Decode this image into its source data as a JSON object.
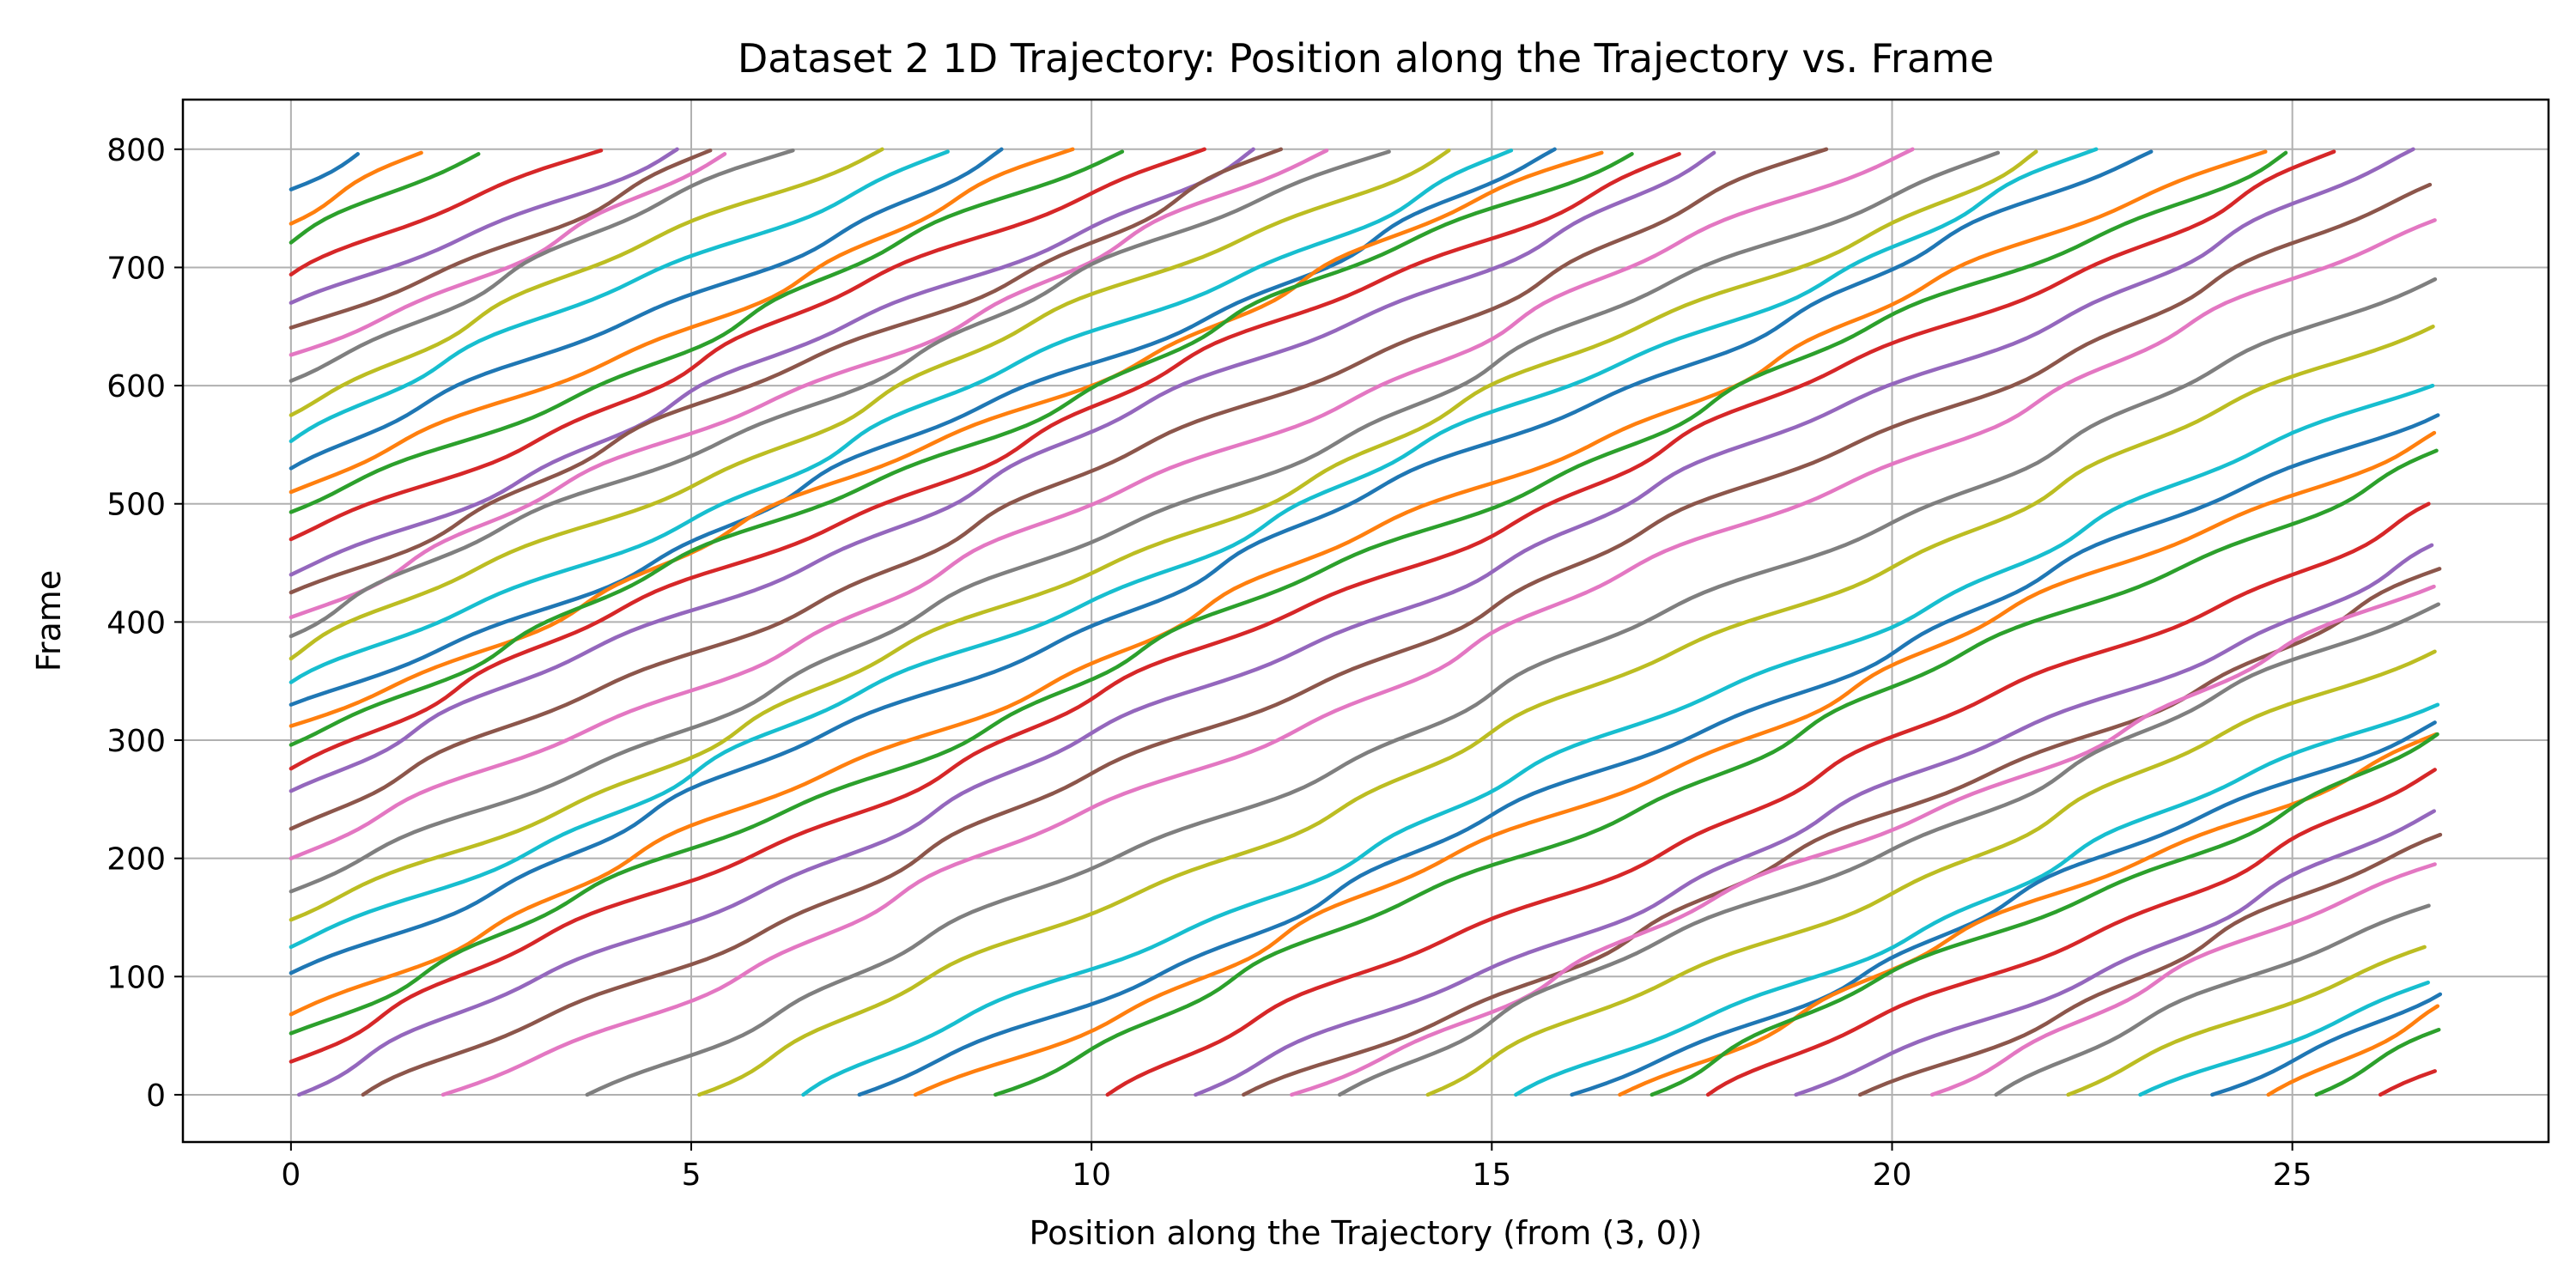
{
  "chart_data": {
    "type": "line",
    "title": "Dataset 2 1D Trajectory: Position along the Trajectory vs. Frame",
    "xlabel": "Position along the Trajectory (from (3, 0))",
    "ylabel": "Frame",
    "xlim": [
      -1.35,
      28.2
    ],
    "ylim": [
      -40,
      842
    ],
    "x_ticks": [
      0,
      5,
      10,
      15,
      20,
      25
    ],
    "y_ticks": [
      0,
      100,
      200,
      300,
      400,
      500,
      600,
      700,
      800
    ],
    "grid": true,
    "legend": "none",
    "frame_range": [
      0,
      800
    ],
    "track_length": 26.85,
    "speed_units_per_frame": 0.0335,
    "palette": [
      "#1f77b4",
      "#ff7f0e",
      "#2ca02c",
      "#d62728",
      "#9467bd",
      "#8c564b",
      "#e377c2",
      "#7f7f7f",
      "#bcbd22",
      "#17becf"
    ],
    "entries_at_left_edge_frame": [
      28,
      52,
      68,
      103,
      125,
      148,
      172,
      200,
      225,
      257,
      276,
      296,
      312,
      330,
      349,
      369,
      388,
      404,
      425,
      440,
      470,
      493,
      510,
      530,
      553,
      575,
      604,
      626,
      649,
      670,
      694,
      721,
      737,
      766
    ],
    "starts_at_frame_0_position": [
      0.1,
      0.9,
      1.9,
      3.7,
      5.1,
      6.4,
      7.1,
      7.8,
      8.8,
      10.2,
      11.3,
      11.9,
      12.5,
      13.1,
      14.2,
      15.3,
      16.0,
      16.6,
      17.0,
      17.7,
      18.8,
      19.6,
      20.5,
      21.3,
      22.2,
      23.1,
      24.0,
      24.7,
      25.3,
      26.1
    ]
  }
}
